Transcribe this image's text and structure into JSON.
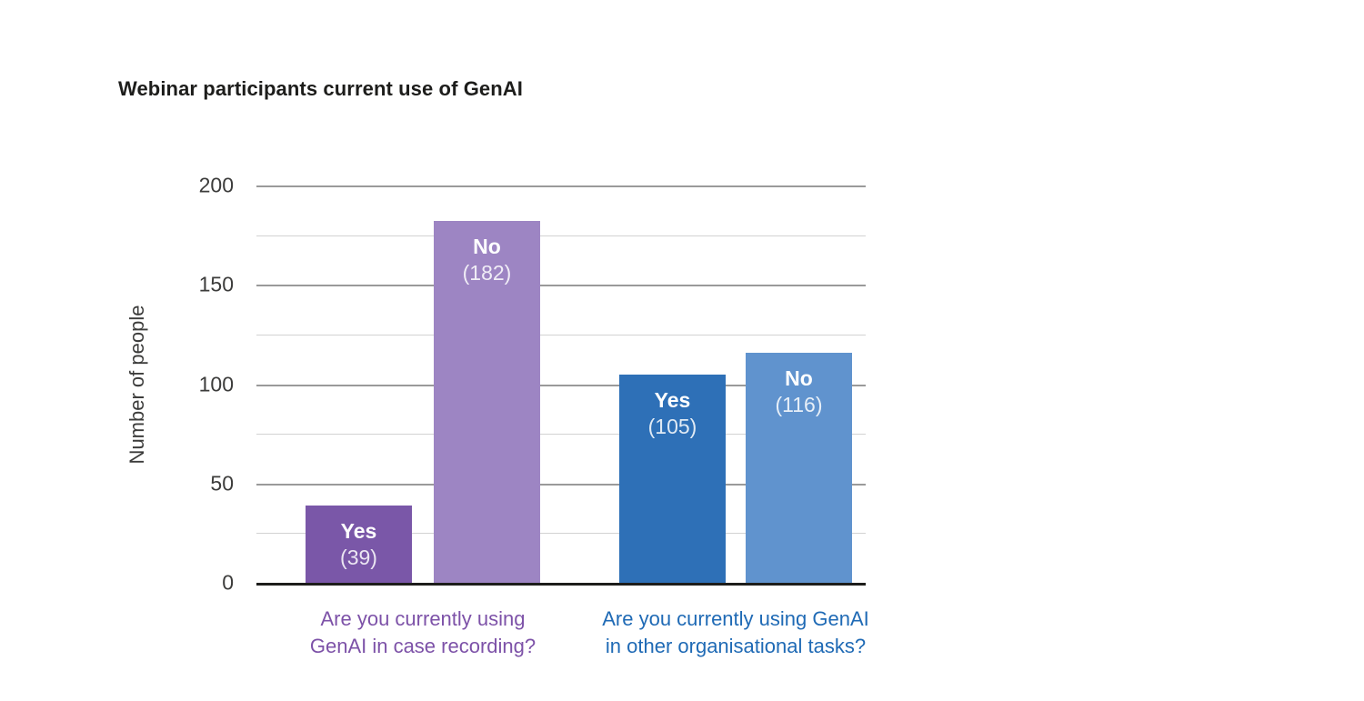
{
  "chart_data": {
    "type": "bar",
    "title": "Webinar participants current use of GenAI",
    "ylabel": "Number of people",
    "ylim": [
      0,
      200
    ],
    "yticks_major": [
      0,
      50,
      100,
      150,
      200
    ],
    "yticks_minor": [
      25,
      75,
      125,
      175
    ],
    "grid": "horizontal",
    "legend": "none",
    "groups": [
      {
        "question_lines": [
          "Are you currently using",
          "GenAI in case recording?"
        ],
        "question_color": "#7d52a8",
        "bars": [
          {
            "label": "Yes",
            "value": 39,
            "value_display": "(39)",
            "color": "#7a57a8"
          },
          {
            "label": "No",
            "value": 182,
            "value_display": "(182)",
            "color": "#9d85c3"
          }
        ]
      },
      {
        "question_lines": [
          "Are you currently using GenAI",
          "in other organisational tasks?"
        ],
        "question_color": "#1f6ab5",
        "bars": [
          {
            "label": "Yes",
            "value": 105,
            "value_display": "(105)",
            "color": "#2e70b7"
          },
          {
            "label": "No",
            "value": 116,
            "value_display": "(116)",
            "color": "#6093ce"
          }
        ]
      }
    ]
  }
}
